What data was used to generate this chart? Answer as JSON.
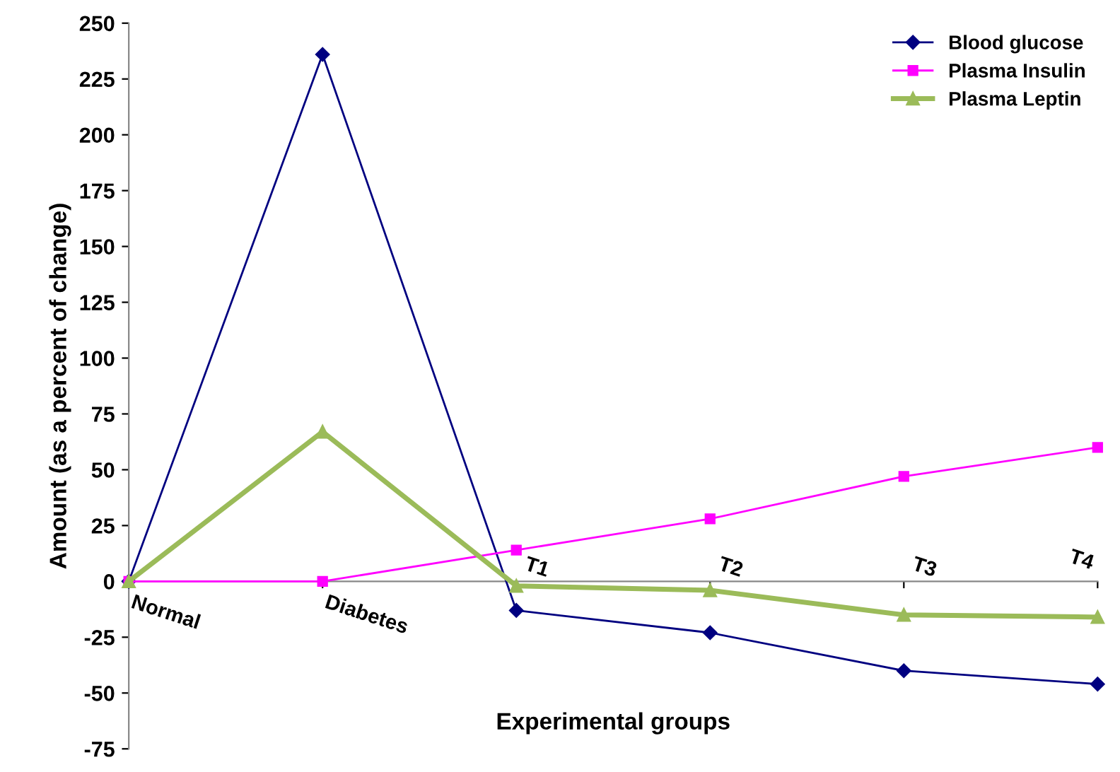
{
  "chart_data": {
    "type": "line",
    "xlabel": "Experimental groups",
    "ylabel": "Amount (as a percent of change)",
    "categories": [
      "Normal",
      "Diabetes",
      "T1",
      "T2",
      "T3",
      "T4"
    ],
    "series": [
      {
        "name": "Blood glucose",
        "color": "#000080",
        "marker": "diamond",
        "values": [
          0,
          236,
          -13,
          -23,
          -40,
          -46
        ]
      },
      {
        "name": "Plasma Insulin",
        "color": "#ff00ff",
        "marker": "square",
        "values": [
          0,
          0,
          14,
          28,
          47,
          60
        ]
      },
      {
        "name": "Plasma Leptin",
        "color": "#9bbb59",
        "marker": "triangle",
        "values": [
          0,
          67,
          -2,
          -4,
          -15,
          -16
        ]
      }
    ],
    "ylim": [
      -75,
      250
    ],
    "yticks": [
      -75,
      -50,
      -25,
      0,
      25,
      50,
      75,
      100,
      125,
      150,
      175,
      200,
      225,
      250
    ],
    "grid": false,
    "legend": "top right"
  }
}
